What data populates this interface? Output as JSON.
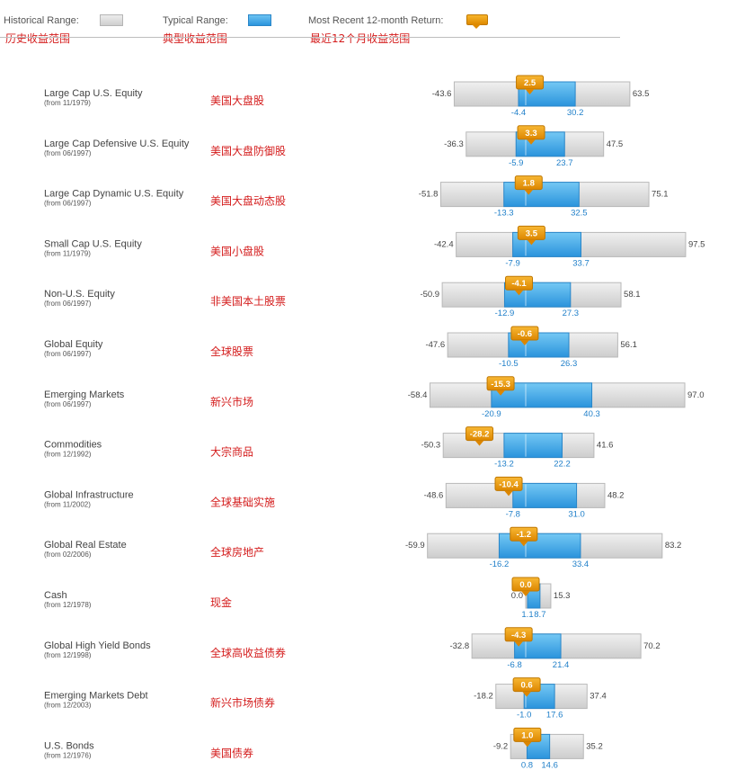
{
  "legend": {
    "historical_label": "Historical Range:",
    "typical_label": "Typical Range:",
    "recent_label": "Most Recent 12-month Return:",
    "historical_cn": "历史收益范围",
    "typical_cn": "典型收益范围",
    "recent_cn": "最近12个月收益范围"
  },
  "colors": {
    "historical": "#d6d6d6",
    "typical": "#3fa9ec",
    "recent": "#f0a21a",
    "annotation": "#d41c1c"
  },
  "chart_data": {
    "type": "bar",
    "series_names": [
      "Historical Range",
      "Typical Range",
      "Most Recent 12-month Return"
    ],
    "rows": [
      {
        "name": "Large Cap U.S. Equity",
        "since": "(from 11/1979)",
        "cn": "美国大盘股",
        "hist_min": -43.6,
        "hist_max": 63.5,
        "typ_min": -4.4,
        "typ_max": 30.2,
        "recent": 2.5
      },
      {
        "name": "Large Cap Defensive U.S. Equity",
        "since": "(from 06/1997)",
        "cn": "美国大盘防御股",
        "hist_min": -36.3,
        "hist_max": 47.5,
        "typ_min": -5.9,
        "typ_max": 23.7,
        "recent": 3.3
      },
      {
        "name": "Large Cap Dynamic U.S. Equity",
        "since": "(from 06/1997)",
        "cn": "美国大盘动态股",
        "hist_min": -51.8,
        "hist_max": 75.1,
        "typ_min": -13.3,
        "typ_max": 32.5,
        "recent": 1.8
      },
      {
        "name": "Small Cap U.S. Equity",
        "since": "(from 11/1979)",
        "cn": "美国小盘股",
        "hist_min": -42.4,
        "hist_max": 97.5,
        "typ_min": -7.9,
        "typ_max": 33.7,
        "recent": 3.5
      },
      {
        "name": "Non-U.S. Equity",
        "since": "(from 06/1997)",
        "cn": "非美国本土股票",
        "hist_min": -50.9,
        "hist_max": 58.1,
        "typ_min": -12.9,
        "typ_max": 27.3,
        "recent": -4.1
      },
      {
        "name": "Global Equity",
        "since": "(from 06/1997)",
        "cn": "全球股票",
        "hist_min": -47.6,
        "hist_max": 56.1,
        "typ_min": -10.5,
        "typ_max": 26.3,
        "recent": -0.6
      },
      {
        "name": "Emerging Markets",
        "since": "(from 06/1997)",
        "cn": "新兴市场",
        "hist_min": -58.4,
        "hist_max": 97.0,
        "typ_min": -20.9,
        "typ_max": 40.3,
        "recent": -15.3
      },
      {
        "name": "Commodities",
        "since": "(from 12/1992)",
        "cn": "大宗商品",
        "hist_min": -50.3,
        "hist_max": 41.6,
        "typ_min": -13.2,
        "typ_max": 22.2,
        "recent": -28.2
      },
      {
        "name": "Global Infrastructure",
        "since": "(from 11/2002)",
        "cn": "全球基础实施",
        "hist_min": -48.6,
        "hist_max": 48.2,
        "typ_min": -7.8,
        "typ_max": 31.0,
        "recent": -10.4
      },
      {
        "name": "Global Real Estate",
        "since": "(from 02/2006)",
        "cn": "全球房地产",
        "hist_min": -59.9,
        "hist_max": 83.2,
        "typ_min": -16.2,
        "typ_max": 33.4,
        "recent": -1.2
      },
      {
        "name": "Cash",
        "since": "(from 12/1978)",
        "cn": "现金",
        "hist_min": 0.0,
        "hist_max": 15.3,
        "typ_min": 1.1,
        "typ_max": 8.7,
        "recent": 0.0
      },
      {
        "name": "Global High Yield Bonds",
        "since": "(from 12/1998)",
        "cn": "全球高收益债券",
        "hist_min": -32.8,
        "hist_max": 70.2,
        "typ_min": -6.8,
        "typ_max": 21.4,
        "recent": -4.3
      },
      {
        "name": "Emerging Markets Debt",
        "since": "(from 12/2003)",
        "cn": "新兴市场债券",
        "hist_min": -18.2,
        "hist_max": 37.4,
        "typ_min": -1.0,
        "typ_max": 17.6,
        "recent": 0.6
      },
      {
        "name": "U.S. Bonds",
        "since": "(from 12/1976)",
        "cn": "美国债券",
        "hist_min": -9.2,
        "hist_max": 35.2,
        "typ_min": 0.8,
        "typ_max": 14.6,
        "recent": 1.0
      }
    ]
  }
}
